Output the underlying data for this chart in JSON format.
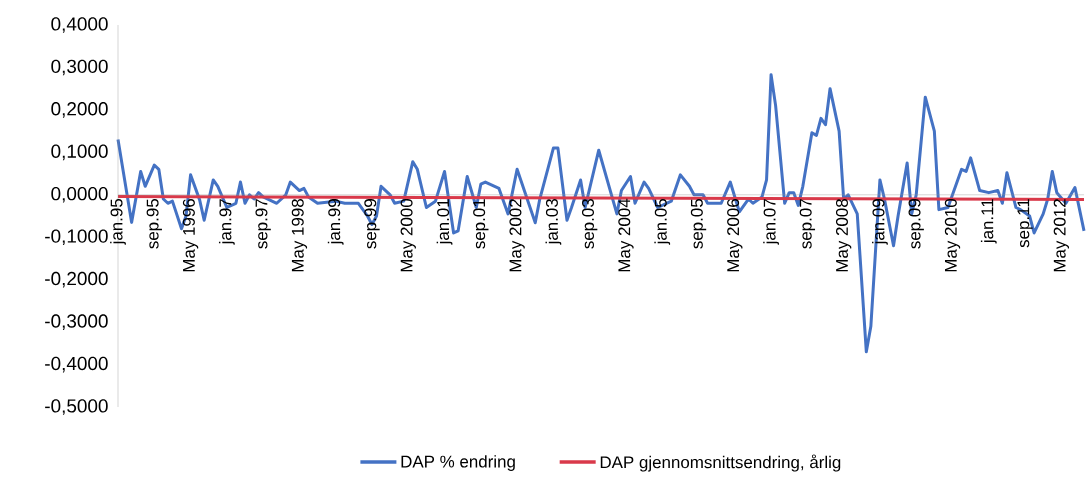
{
  "chart_data": {
    "type": "line",
    "legend": "bottom",
    "ylim": [
      -0.5,
      0.4
    ],
    "yticks": [
      {
        "value": -0.5,
        "label": "-0,5000"
      },
      {
        "value": -0.4,
        "label": "-0,4000"
      },
      {
        "value": -0.3,
        "label": "-0,3000"
      },
      {
        "value": -0.2,
        "label": "-0,2000"
      },
      {
        "value": -0.1,
        "label": "-0,1000"
      },
      {
        "value": 0,
        "label": "0,0000"
      },
      {
        "value": 0.1,
        "label": "0,1000"
      },
      {
        "value": 0.2,
        "label": "0,2000"
      },
      {
        "value": 0.3,
        "label": "0,3000"
      },
      {
        "value": 0.4,
        "label": "0,4000"
      }
    ],
    "xlim": [
      "1995-01",
      "2012-10"
    ],
    "xticks": [
      {
        "value": "1995-01",
        "label": "jan.95"
      },
      {
        "value": "1995-09",
        "label": "sep.95"
      },
      {
        "value": "1996-05",
        "label": "May 1996"
      },
      {
        "value": "1997-01",
        "label": "jan.97"
      },
      {
        "value": "1997-09",
        "label": "sep.97"
      },
      {
        "value": "1998-05",
        "label": "May 1998"
      },
      {
        "value": "1999-01",
        "label": "jan.99"
      },
      {
        "value": "1999-09",
        "label": "sep.99"
      },
      {
        "value": "2000-05",
        "label": "May 2000"
      },
      {
        "value": "2001-01",
        "label": "jan.01"
      },
      {
        "value": "2001-09",
        "label": "sep.01"
      },
      {
        "value": "2002-05",
        "label": "May 2002"
      },
      {
        "value": "2003-01",
        "label": "jan.03"
      },
      {
        "value": "2003-09",
        "label": "sep.03"
      },
      {
        "value": "2004-05",
        "label": "May 2004"
      },
      {
        "value": "2005-01",
        "label": "jan.05"
      },
      {
        "value": "2005-09",
        "label": "sep.05"
      },
      {
        "value": "2006-05",
        "label": "May 2006"
      },
      {
        "value": "2007-01",
        "label": "jan.07"
      },
      {
        "value": "2007-09",
        "label": "sep.07"
      },
      {
        "value": "2008-05",
        "label": "May 2008"
      },
      {
        "value": "2009-01",
        "label": "jan.09"
      },
      {
        "value": "2009-09",
        "label": "sep.09"
      },
      {
        "value": "2010-05",
        "label": "May 2010"
      },
      {
        "value": "2011-01",
        "label": "jan.11"
      },
      {
        "value": "2011-09",
        "label": "sep.11"
      },
      {
        "value": "2012-05",
        "label": "May 2012"
      }
    ],
    "series": [
      {
        "name": "DAP % endring",
        "color": "#4472c4",
        "x": [
          "1995-01",
          "1995-04",
          "1995-06",
          "1995-07",
          "1995-09",
          "1995-10",
          "1995-11",
          "1995-12",
          "1996-01",
          "1996-03",
          "1996-04",
          "1996-05",
          "1996-07",
          "1996-08",
          "1996-10",
          "1996-11",
          "1997-01",
          "1997-03",
          "1997-04",
          "1997-05",
          "1997-06",
          "1997-07",
          "1997-08",
          "1997-09",
          "1997-12",
          "1998-02",
          "1998-03",
          "1998-05",
          "1998-06",
          "1998-07",
          "1998-09",
          "1999-01",
          "1999-03",
          "1999-06",
          "1999-08",
          "1999-09",
          "1999-10",
          "1999-11",
          "2000-01",
          "2000-02",
          "2000-04",
          "2000-06",
          "2000-07",
          "2000-09",
          "2000-11",
          "2001-01",
          "2001-03",
          "2001-04",
          "2001-06",
          "2001-08",
          "2001-09",
          "2001-10",
          "2002-01",
          "2002-03",
          "2002-05",
          "2002-09",
          "2002-10",
          "2003-01",
          "2003-02",
          "2003-04",
          "2003-05",
          "2003-07",
          "2003-08",
          "2003-11",
          "2004-03",
          "2004-04",
          "2004-06",
          "2004-07",
          "2004-09",
          "2004-10",
          "2004-12",
          "2005-03",
          "2005-05",
          "2005-07",
          "2005-08",
          "2005-10",
          "2005-11",
          "2006-02",
          "2006-04",
          "2006-06",
          "2006-08",
          "2006-09",
          "2006-11",
          "2006-12",
          "2007-01",
          "2007-02",
          "2007-04",
          "2007-05",
          "2007-06",
          "2007-07",
          "2007-08",
          "2007-10",
          "2007-11",
          "2007-12",
          "2008-01",
          "2008-02",
          "2008-04",
          "2008-05",
          "2008-06",
          "2008-08",
          "2008-10",
          "2008-11",
          "2009-01",
          "2009-02",
          "2009-04",
          "2009-05",
          "2009-07",
          "2009-08",
          "2009-09",
          "2009-11",
          "2010-01",
          "2010-02",
          "2010-04",
          "2010-07",
          "2010-08",
          "2010-09",
          "2010-11",
          "2011-01",
          "2011-03",
          "2011-04",
          "2011-05",
          "2011-07",
          "2011-08",
          "2011-10",
          "2011-11",
          "2012-01",
          "2012-02",
          "2012-03",
          "2012-04",
          "2012-06",
          "2012-08",
          "2012-10"
        ],
        "values": [
          0.13,
          -0.065,
          0.055,
          0.02,
          0.07,
          0.06,
          -0.01,
          -0.02,
          -0.015,
          -0.08,
          -0.05,
          0.047,
          -0.012,
          -0.06,
          0.035,
          0.02,
          -0.03,
          -0.02,
          0.03,
          -0.02,
          0.0,
          -0.01,
          0.005,
          -0.005,
          -0.02,
          0.0,
          0.03,
          0.01,
          0.015,
          -0.005,
          -0.02,
          -0.015,
          -0.02,
          -0.02,
          -0.05,
          -0.07,
          -0.05,
          0.02,
          0.0,
          -0.02,
          -0.015,
          0.078,
          0.06,
          -0.03,
          -0.015,
          0.055,
          -0.09,
          -0.085,
          0.043,
          -0.03,
          0.025,
          0.03,
          0.015,
          -0.045,
          0.06,
          -0.066,
          -0.01,
          0.11,
          0.11,
          -0.06,
          -0.03,
          0.035,
          -0.03,
          0.105,
          -0.045,
          0.01,
          0.043,
          -0.02,
          0.03,
          0.015,
          -0.03,
          -0.015,
          0.047,
          0.02,
          0.0,
          0.0,
          -0.02,
          -0.02,
          0.03,
          -0.04,
          -0.01,
          -0.02,
          -0.005,
          0.035,
          0.283,
          0.21,
          -0.02,
          0.005,
          0.005,
          -0.025,
          0.02,
          0.146,
          0.14,
          0.18,
          0.165,
          0.25,
          0.15,
          -0.01,
          0.0,
          -0.045,
          -0.37,
          -0.31,
          0.035,
          -0.01,
          -0.12,
          -0.05,
          0.075,
          -0.045,
          0.0,
          0.23,
          0.15,
          -0.035,
          -0.03,
          0.06,
          0.055,
          0.087,
          0.01,
          0.005,
          0.01,
          -0.02,
          0.052,
          -0.03,
          -0.035,
          -0.05,
          -0.09,
          -0.045,
          -0.01,
          0.055,
          0.005,
          -0.02,
          0.017,
          -0.085
        ]
      },
      {
        "name": "DAP gjennomsnittsendring, årlig",
        "color": "#d9394a",
        "x": [
          "1995-01",
          "2012-10"
        ],
        "values": [
          -0.004,
          -0.011
        ]
      }
    ]
  }
}
